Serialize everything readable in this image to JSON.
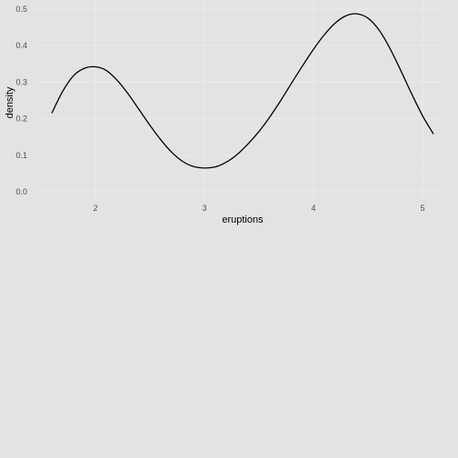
{
  "chart_data": {
    "type": "line",
    "xlabel": "eruptions",
    "ylabel": "density",
    "xlim": [
      1.5,
      5.2
    ],
    "ylim": [
      0,
      0.5
    ],
    "x_ticks": [
      2,
      3,
      4,
      5
    ],
    "x_tick_labels": [
      "2",
      "3",
      "4",
      "5"
    ],
    "y_ticks": [
      0,
      0.1,
      0.2,
      0.3,
      0.4,
      0.5
    ],
    "y_tick_labels": [
      "0.0",
      "0.1",
      "0.2",
      "0.3",
      "0.4",
      "0.5"
    ],
    "grid": true,
    "series": [
      {
        "x": [
          1.6,
          1.7,
          1.8,
          1.9,
          2.0,
          2.1,
          2.2,
          2.3,
          2.4,
          2.5,
          2.6,
          2.7,
          2.8,
          2.9,
          3.0,
          3.1,
          3.2,
          3.3,
          3.4,
          3.5,
          3.6,
          3.7,
          3.8,
          3.9,
          4.0,
          4.1,
          4.2,
          4.3,
          4.4,
          4.5,
          4.6,
          4.7,
          4.8,
          4.9,
          5.0,
          5.1
        ],
        "y": [
          0.215,
          0.275,
          0.318,
          0.338,
          0.342,
          0.332,
          0.305,
          0.268,
          0.225,
          0.182,
          0.142,
          0.108,
          0.083,
          0.069,
          0.065,
          0.068,
          0.081,
          0.102,
          0.131,
          0.165,
          0.205,
          0.25,
          0.298,
          0.345,
          0.39,
          0.43,
          0.462,
          0.482,
          0.487,
          0.475,
          0.443,
          0.393,
          0.332,
          0.268,
          0.208,
          0.158
        ]
      }
    ],
    "colors": {
      "background": "#e3e3e3",
      "grid": "#ebebeb",
      "line": "#000000",
      "tick_text": "#4d4d4d"
    }
  }
}
